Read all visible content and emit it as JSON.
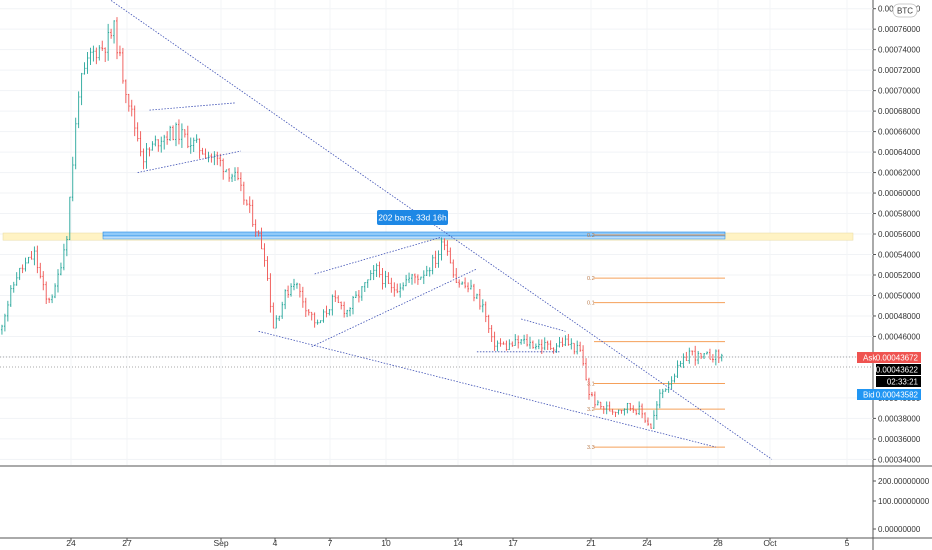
{
  "symbol_badge": "BTC",
  "chart_data": {
    "type": "candlestick",
    "quote_currency": "BTC",
    "y_ticks": [
      "0.00078000",
      "0.00076000",
      "0.00074000",
      "0.00072000",
      "0.00070000",
      "0.00068000",
      "0.00066000",
      "0.00064000",
      "0.00062000",
      "0.00060000",
      "0.00058000",
      "0.00056000",
      "0.00054000",
      "0.00052000",
      "0.00050000",
      "0.00048000",
      "0.00046000",
      "0.00044000",
      "0.00040000",
      "0.00038000",
      "0.00036000",
      "0.00034000"
    ],
    "ylim": [
      0.000334,
      0.000788
    ],
    "x_ticks": [
      "24",
      "27",
      "Sep",
      "4",
      "7",
      "10",
      "14",
      "17",
      "21",
      "24",
      "28",
      "Oct",
      "5"
    ],
    "lower_pane_ticks": [
      "200.00000000",
      "100.00000000",
      "0.00000000"
    ],
    "ask": {
      "label": "Ask",
      "value": "0.00043672",
      "color": "#ef5350"
    },
    "last": {
      "value": "0.00043622",
      "countdown": "02:33:21",
      "color": "#000000"
    },
    "bid": {
      "label": "Bid",
      "value": "0.00043582",
      "color": "#2196f3"
    },
    "measure_label": "202 bars, 33d 16h",
    "resistance_band": [
      0.000554,
      0.000561
    ],
    "fib_levels": [
      {
        "label": "0.2",
        "value": 0.000559
      },
      {
        "label": "0.2",
        "value": 0.000517
      },
      {
        "label": "0.1",
        "value": 0.000493
      },
      {
        "label": "",
        "value": 0.000455
      },
      {
        "label": "3.1",
        "value": 0.000414
      },
      {
        "label": "3.2",
        "value": 0.000389
      },
      {
        "label": "3.3",
        "value": 0.000352
      }
    ],
    "colors": {
      "up": "#26a69a",
      "down": "#ef5350",
      "trendline": "#3f51b5",
      "fib": "#f5a05a",
      "band": "#fff3c4"
    },
    "trendlines": [
      {
        "name": "main-downtrend",
        "p1": {
          "bar": 38,
          "price": 0.000788
        },
        "p2": {
          "bar": 262,
          "price": 0.00034
        }
      },
      {
        "name": "lower-wedge",
        "p1": {
          "bar": 88,
          "price": 0.000465
        },
        "p2": {
          "bar": 243,
          "price": 0.000352
        }
      },
      {
        "name": "flag-top",
        "p1": {
          "bar": 51,
          "price": 0.000681
        },
        "p2": {
          "bar": 80,
          "price": 0.000688
        }
      },
      {
        "name": "flag-bottom",
        "p1": {
          "bar": 47,
          "price": 0.00062
        },
        "p2": {
          "bar": 82,
          "price": 0.000641
        }
      },
      {
        "name": "channel-top",
        "p1": {
          "bar": 107,
          "price": 0.000521
        },
        "p2": {
          "bar": 150,
          "price": 0.000557
        }
      },
      {
        "name": "channel-bottom",
        "p1": {
          "bar": 106,
          "price": 0.00045
        },
        "p2": {
          "bar": 162,
          "price": 0.000526
        }
      },
      {
        "name": "base-line",
        "p1": {
          "bar": 162,
          "price": 0.000445
        },
        "p2": {
          "bar": 190,
          "price": 0.000445
        }
      },
      {
        "name": "small-wedge-top",
        "p1": {
          "bar": 177,
          "price": 0.000477
        },
        "p2": {
          "bar": 192,
          "price": 0.000465
        }
      }
    ]
  }
}
